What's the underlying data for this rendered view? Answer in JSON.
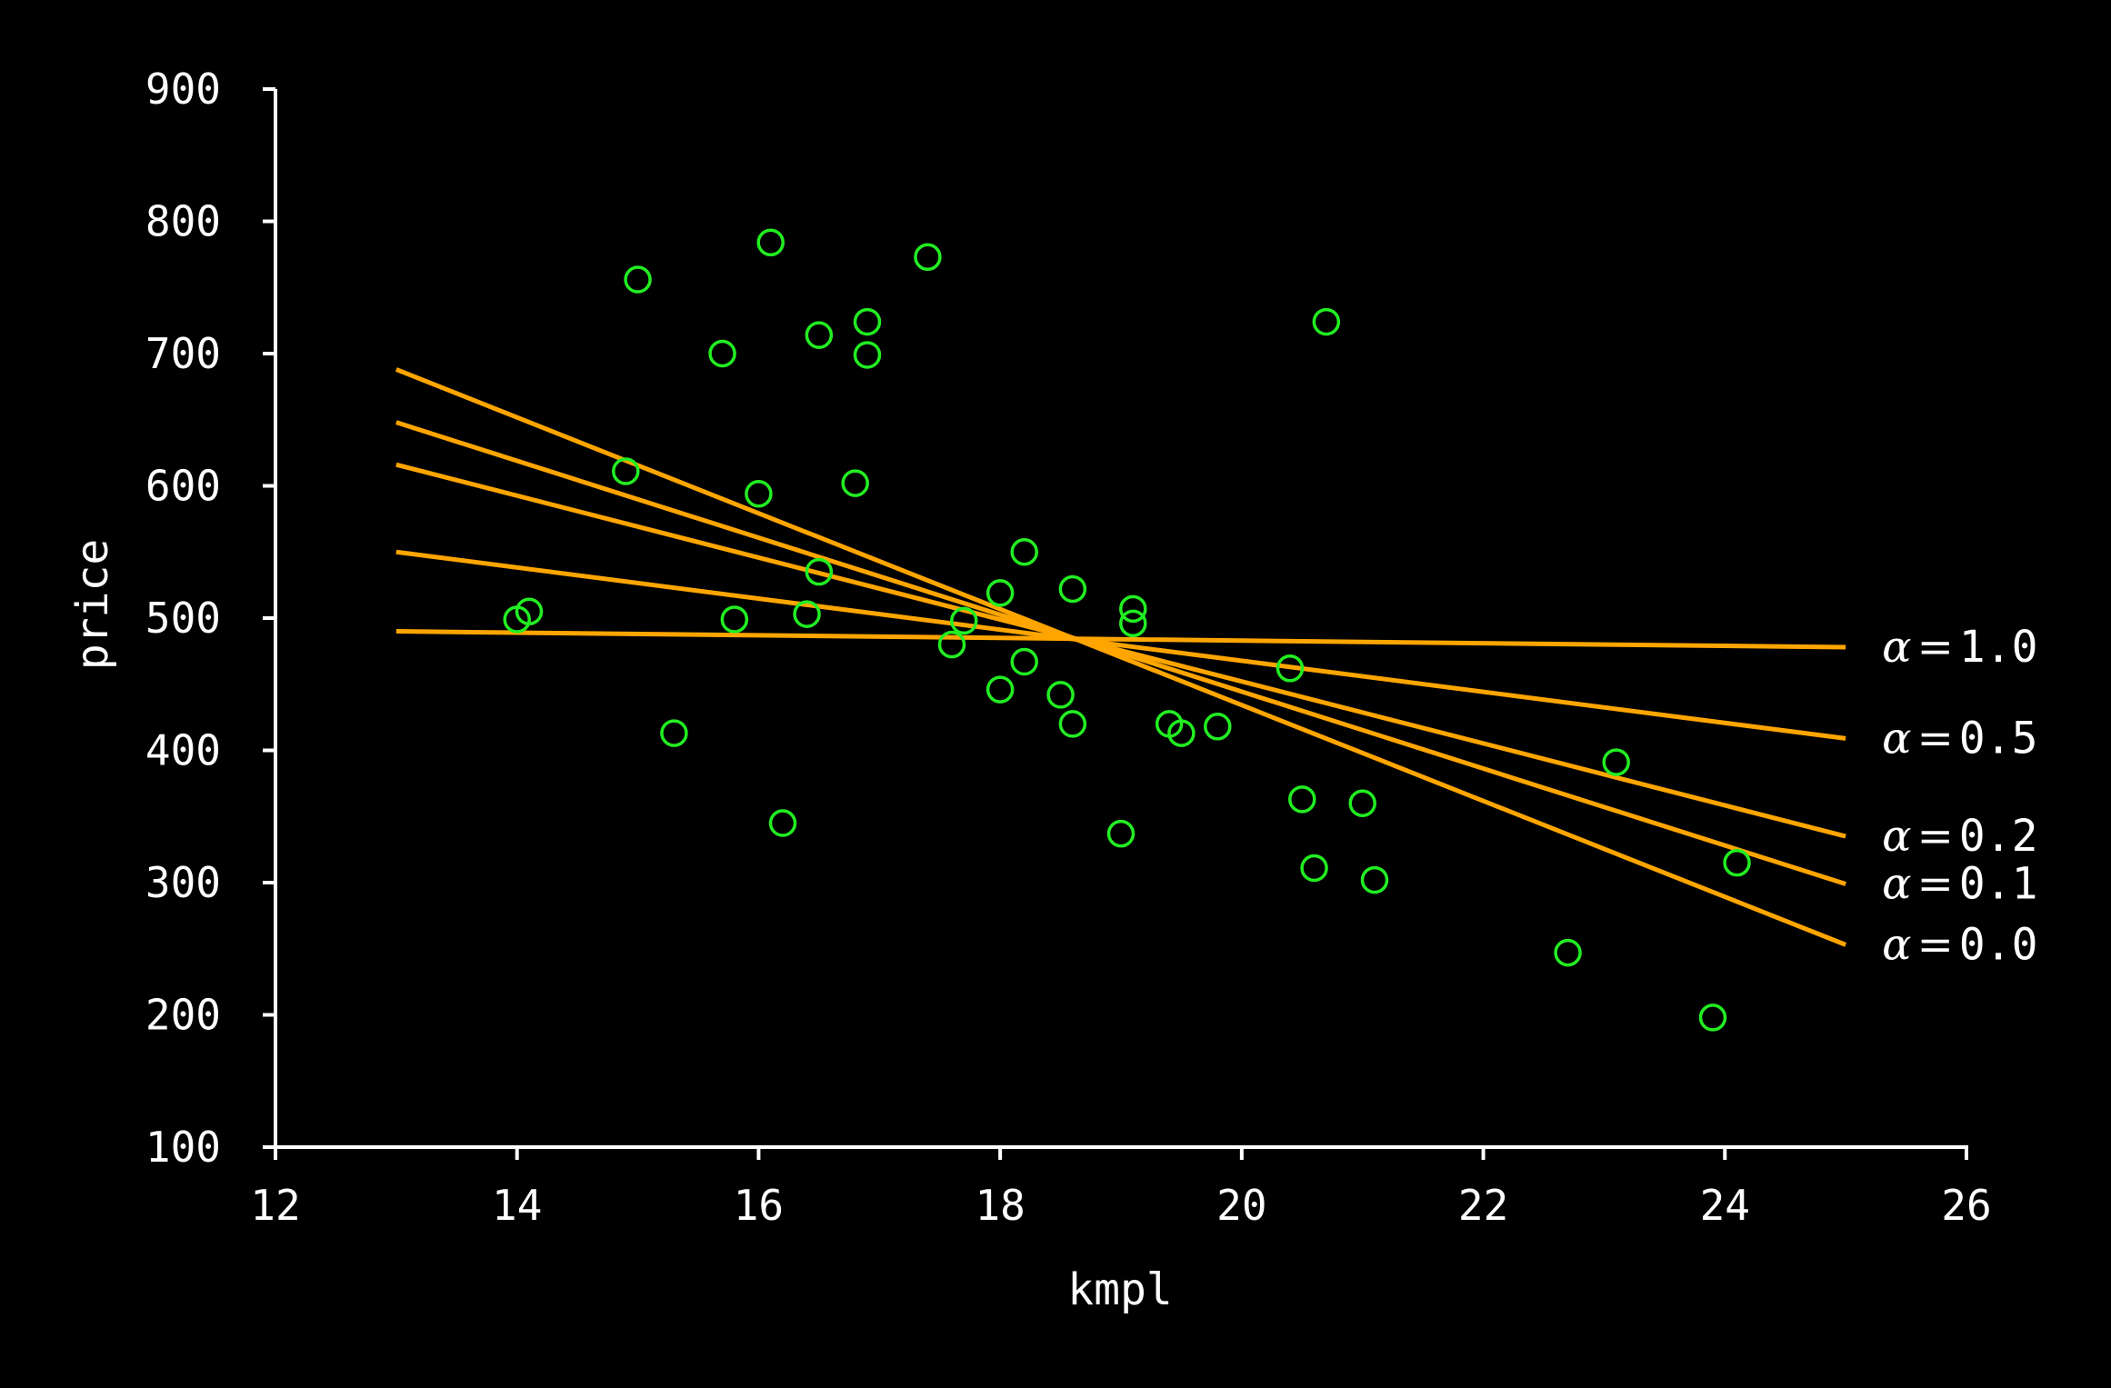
{
  "chart_data": {
    "type": "scatter",
    "title": "",
    "xlabel": "kmpl",
    "ylabel": "price",
    "xlim": [
      12,
      26
    ],
    "ylim": [
      100,
      900
    ],
    "xticks": [
      "12",
      "14",
      "16",
      "18",
      "20",
      "22",
      "24",
      "26"
    ],
    "yticks": [
      "100",
      "200",
      "300",
      "400",
      "500",
      "600",
      "700",
      "800",
      "900"
    ],
    "grid": false,
    "background": "#000000",
    "axis_color": "#ffffff",
    "points_color": "#22ee22",
    "line_color": "#ffa500",
    "points": [
      {
        "x": 14.0,
        "y": 499
      },
      {
        "x": 14.1,
        "y": 505
      },
      {
        "x": 14.9,
        "y": 611
      },
      {
        "x": 15.0,
        "y": 756
      },
      {
        "x": 15.3,
        "y": 413
      },
      {
        "x": 15.7,
        "y": 700
      },
      {
        "x": 15.8,
        "y": 499
      },
      {
        "x": 16.0,
        "y": 594
      },
      {
        "x": 16.1,
        "y": 784
      },
      {
        "x": 16.2,
        "y": 345
      },
      {
        "x": 16.4,
        "y": 503
      },
      {
        "x": 16.5,
        "y": 714
      },
      {
        "x": 16.5,
        "y": 535
      },
      {
        "x": 16.8,
        "y": 602
      },
      {
        "x": 16.9,
        "y": 724
      },
      {
        "x": 16.9,
        "y": 699
      },
      {
        "x": 17.4,
        "y": 773
      },
      {
        "x": 17.6,
        "y": 480
      },
      {
        "x": 17.7,
        "y": 498
      },
      {
        "x": 18.0,
        "y": 519
      },
      {
        "x": 18.0,
        "y": 446
      },
      {
        "x": 18.2,
        "y": 550
      },
      {
        "x": 18.2,
        "y": 467
      },
      {
        "x": 18.5,
        "y": 442
      },
      {
        "x": 18.6,
        "y": 522
      },
      {
        "x": 18.6,
        "y": 420
      },
      {
        "x": 19.0,
        "y": 337
      },
      {
        "x": 19.1,
        "y": 507
      },
      {
        "x": 19.1,
        "y": 496
      },
      {
        "x": 19.4,
        "y": 420
      },
      {
        "x": 19.5,
        "y": 413
      },
      {
        "x": 19.8,
        "y": 418
      },
      {
        "x": 20.4,
        "y": 462
      },
      {
        "x": 20.5,
        "y": 363
      },
      {
        "x": 20.6,
        "y": 311
      },
      {
        "x": 20.7,
        "y": 724
      },
      {
        "x": 21.0,
        "y": 360
      },
      {
        "x": 21.1,
        "y": 302
      },
      {
        "x": 22.7,
        "y": 247
      },
      {
        "x": 23.1,
        "y": 391
      },
      {
        "x": 23.9,
        "y": 198
      },
      {
        "x": 24.1,
        "y": 315
      }
    ],
    "series": [
      {
        "name": "α = 1.0",
        "label_prefix": "α",
        "label_value": "1.0",
        "x": [
          13,
          25
        ],
        "y": [
          490,
          478
        ]
      },
      {
        "name": "α = 0.5",
        "label_prefix": "α",
        "label_value": "0.5",
        "x": [
          13,
          25
        ],
        "y": [
          550,
          409
        ]
      },
      {
        "name": "α = 0.2",
        "label_prefix": "α",
        "label_value": "0.2",
        "x": [
          13,
          25
        ],
        "y": [
          616,
          335
        ]
      },
      {
        "name": "α = 0.1",
        "label_prefix": "α",
        "label_value": "0.1",
        "x": [
          13,
          25
        ],
        "y": [
          648,
          299
        ]
      },
      {
        "name": "α = 0.0",
        "label_prefix": "α",
        "label_value": "0.0",
        "x": [
          13,
          25
        ],
        "y": [
          688,
          253
        ]
      }
    ]
  }
}
